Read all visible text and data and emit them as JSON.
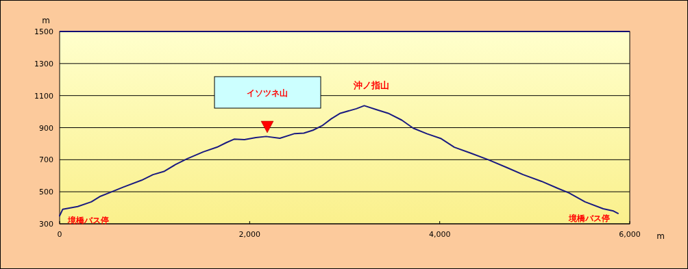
{
  "chart_data": {
    "type": "line",
    "xlabel": "m",
    "ylabel": "m",
    "xlim": [
      0,
      6000
    ],
    "ylim": [
      300,
      1500
    ],
    "xticks": [
      0,
      {
        "value": 2000,
        "label": "2,000"
      },
      {
        "value": 4000,
        "label": "4,000"
      },
      {
        "value": 6000,
        "label": "6,000"
      }
    ],
    "yticks": [
      300,
      500,
      700,
      900,
      1100,
      1300,
      1500
    ],
    "grid": "y",
    "marker": "none",
    "line_style": "solid",
    "series": [
      {
        "color": "#1a1a80",
        "x": [
          0,
          33,
          190,
          334,
          430,
          550,
          670,
          863,
          983,
          1103,
          1223,
          1343,
          1512,
          1656,
          1752,
          1836,
          1945,
          2065,
          2173,
          2318,
          2474,
          2570,
          2666,
          2762,
          2858,
          2954,
          3122,
          3206,
          3336,
          3457,
          3601,
          3721,
          3865,
          4010,
          4154,
          4322,
          4516,
          4710,
          4878,
          5072,
          5240,
          5361,
          5529,
          5721,
          5829,
          5877
        ],
        "values": [
          350,
          391,
          408,
          437,
          472,
          500,
          529,
          572,
          607,
          628,
          671,
          706,
          749,
          778,
          806,
          828,
          825,
          838,
          845,
          834,
          863,
          866,
          884,
          912,
          955,
          990,
          1018,
          1037,
          1012,
          990,
          947,
          897,
          862,
          833,
          778,
          742,
          699,
          650,
          607,
          565,
          522,
          493,
          437,
          394,
          380,
          365
        ]
      }
    ],
    "annotations": [
      {
        "text": "境橋バス停",
        "x": 0,
        "y": 350
      },
      "イソツネ山",
      {
        "text": "沖ノ指山",
        "x": 3206,
        "y": 1037
      },
      {
        "text": "境橋バス停",
        "x": 5877,
        "y": 365
      }
    ]
  }
}
